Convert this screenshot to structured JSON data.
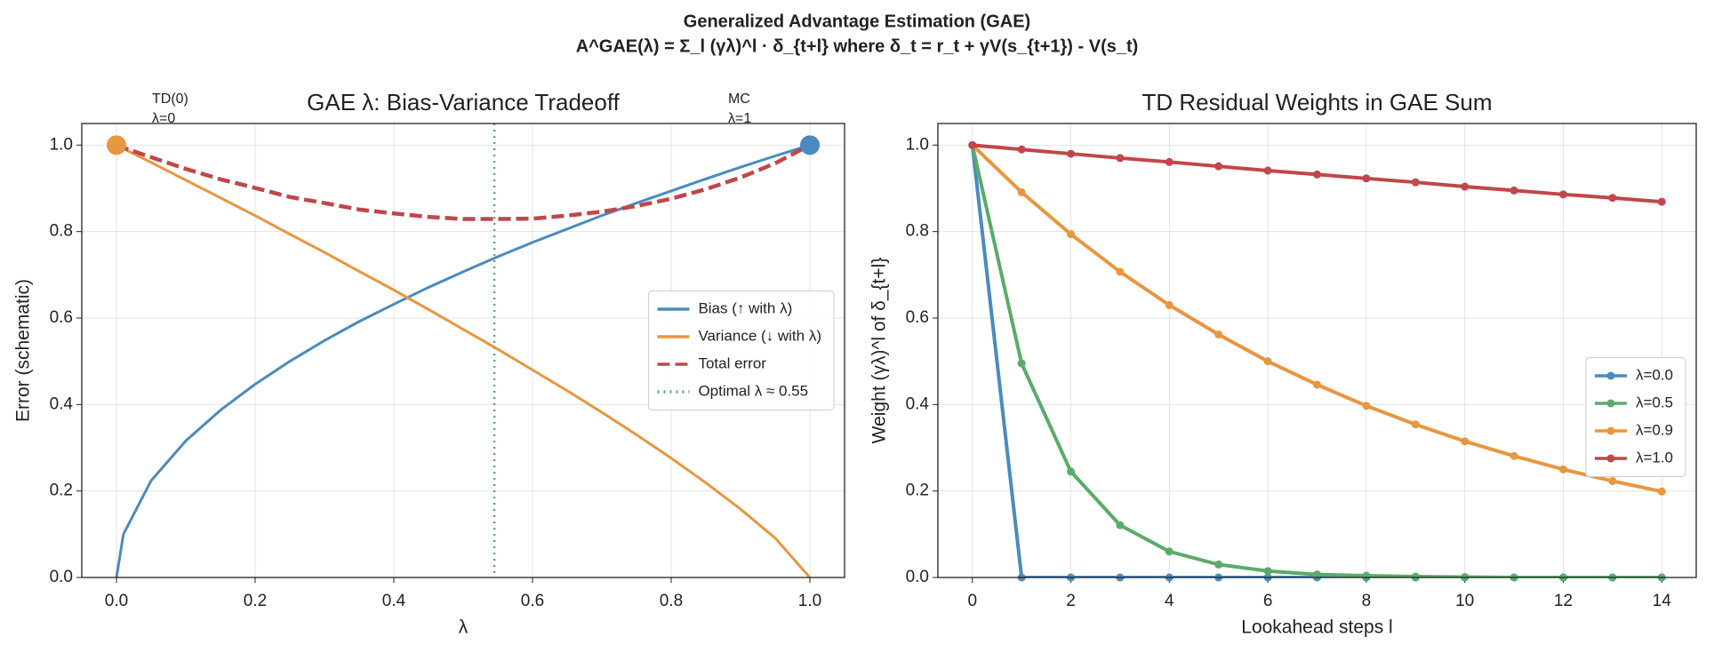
{
  "title": "Generalized Advantage Estimation (GAE)",
  "subtitle": "A^GAE(λ) = Σ_l (γλ)^l · δ_{t+l}   where  δ_t = r_t + γV(s_{t+1}) - V(s_t)",
  "chart_data": [
    {
      "type": "line",
      "title": "GAE λ: Bias-Variance Tradeoff",
      "xlabel": "λ",
      "ylabel": "Error (schematic)",
      "x": [
        0,
        0.01,
        0.05,
        0.1,
        0.15,
        0.2,
        0.25,
        0.3,
        0.35,
        0.4,
        0.45,
        0.5,
        0.55,
        0.6,
        0.65,
        0.7,
        0.75,
        0.8,
        0.85,
        0.9,
        0.95,
        1
      ],
      "series": [
        {
          "name": "Bias (↑ with λ)",
          "color": "#4a8bbf",
          "style": "solid",
          "values": [
            0,
            0.1,
            0.224,
            0.316,
            0.387,
            0.447,
            0.5,
            0.548,
            0.592,
            0.632,
            0.671,
            0.707,
            0.742,
            0.775,
            0.806,
            0.837,
            0.866,
            0.894,
            0.922,
            0.949,
            0.975,
            1
          ]
        },
        {
          "name": "Variance (↓ with λ)",
          "color": "#e8963f",
          "style": "solid",
          "values": [
            1,
            0.992,
            0.96,
            0.919,
            0.878,
            0.837,
            0.794,
            0.752,
            0.708,
            0.665,
            0.62,
            0.574,
            0.528,
            0.48,
            0.432,
            0.382,
            0.33,
            0.276,
            0.219,
            0.158,
            0.091,
            0
          ]
        },
        {
          "name": "Total error",
          "color": "#c0474a",
          "style": "dashed",
          "values": [
            1,
            0.994,
            0.972,
            0.945,
            0.921,
            0.901,
            0.88,
            0.866,
            0.851,
            0.842,
            0.834,
            0.829,
            0.829,
            0.83,
            0.837,
            0.846,
            0.859,
            0.876,
            0.898,
            0.925,
            0.958,
            1
          ]
        }
      ],
      "vline": {
        "x": 0.545,
        "name": "Optimal λ ≈ 0.55",
        "color": "#5aab6a",
        "style": "dotted"
      },
      "markers": [
        {
          "x": 0,
          "y": 1,
          "color": "#e8963f",
          "label": [
            "TD(0)",
            "λ=0"
          ]
        },
        {
          "x": 1,
          "y": 1,
          "color": "#4a8bbf",
          "label": [
            "MC",
            "λ=1"
          ]
        }
      ],
      "xlim": [
        -0.05,
        1.05
      ],
      "ylim": [
        0,
        1.05
      ],
      "xticks": [
        {
          "value": 0,
          "label": "0.0"
        },
        {
          "value": 0.2,
          "label": "0.2"
        },
        {
          "value": 0.4,
          "label": "0.4"
        },
        {
          "value": 0.6,
          "label": "0.6"
        },
        {
          "value": 0.8,
          "label": "0.8"
        },
        {
          "value": 1,
          "label": "1.0"
        }
      ],
      "yticks": [
        {
          "value": 0,
          "label": "0.0"
        },
        {
          "value": 0.2,
          "label": "0.2"
        },
        {
          "value": 0.4,
          "label": "0.4"
        },
        {
          "value": 0.6,
          "label": "0.6"
        },
        {
          "value": 0.8,
          "label": "0.8"
        },
        {
          "value": 1,
          "label": "1.0"
        }
      ],
      "grid": true,
      "legend": "center right",
      "point_markers": false
    },
    {
      "type": "line",
      "title": "TD Residual Weights in GAE Sum",
      "xlabel": "Lookahead steps l",
      "ylabel": "Weight  (γλ)^l  of δ_{t+l}",
      "x": [
        0,
        1,
        2,
        3,
        4,
        5,
        6,
        7,
        8,
        9,
        10,
        11,
        12,
        13,
        14
      ],
      "series": [
        {
          "name": "λ=0.0",
          "color": "#4a8bbf",
          "style": "solid",
          "values": [
            1,
            0,
            0,
            0,
            0,
            0,
            0,
            0,
            0,
            0,
            0,
            0,
            0,
            0,
            0
          ]
        },
        {
          "name": "λ=0.5",
          "color": "#5aab6a",
          "style": "solid",
          "values": [
            1,
            0.495,
            0.245,
            0.121,
            0.06,
            0.03,
            0.015,
            0.007,
            0.004,
            0.002,
            0.001,
            0,
            0,
            0,
            0
          ]
        },
        {
          "name": "λ=0.9",
          "color": "#e8963f",
          "style": "solid",
          "values": [
            1,
            0.891,
            0.794,
            0.707,
            0.63,
            0.562,
            0.5,
            0.446,
            0.397,
            0.354,
            0.315,
            0.281,
            0.25,
            0.223,
            0.199
          ]
        },
        {
          "name": "λ=1.0",
          "color": "#c0474a",
          "style": "solid",
          "values": [
            1,
            0.99,
            0.98,
            0.97,
            0.961,
            0.951,
            0.941,
            0.932,
            0.923,
            0.914,
            0.904,
            0.895,
            0.886,
            0.878,
            0.869
          ]
        }
      ],
      "xlim": [
        -0.7,
        14.7
      ],
      "ylim": [
        0,
        1.05
      ],
      "xticks": [
        0,
        2,
        4,
        6,
        8,
        10,
        12,
        14
      ],
      "yticks": [
        {
          "value": 0,
          "label": "0.0"
        },
        {
          "value": 0.2,
          "label": "0.2"
        },
        {
          "value": 0.4,
          "label": "0.4"
        },
        {
          "value": 0.6,
          "label": "0.6"
        },
        {
          "value": 0.8,
          "label": "0.8"
        },
        {
          "value": 1,
          "label": "1.0"
        }
      ],
      "grid": true,
      "legend": "center right",
      "point_markers": true
    }
  ]
}
